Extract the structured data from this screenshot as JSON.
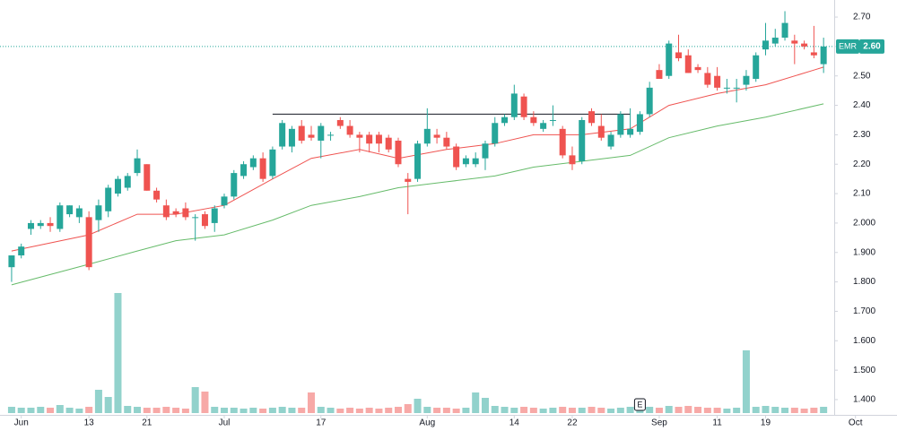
{
  "chart_data": {
    "type": "candlestick",
    "open": [
      1.85,
      1.89,
      1.98,
      1.99,
      2.0,
      1.98,
      2.03,
      2.02,
      2.02,
      2.01,
      2.04,
      2.1,
      2.12,
      2.17,
      2.2,
      2.11,
      2.06,
      2.04,
      2.05,
      2.02,
      2.03,
      2.0,
      2.06,
      2.09,
      2.16,
      2.19,
      2.22,
      2.16,
      2.26,
      2.26,
      2.33,
      2.3,
      2.28,
      2.3,
      2.35,
      2.33,
      2.3,
      2.3,
      2.3,
      2.29,
      2.28,
      2.15,
      2.15,
      2.27,
      2.3,
      2.29,
      2.26,
      2.2,
      2.2,
      2.22,
      2.27,
      2.34,
      2.36,
      2.43,
      2.36,
      2.32,
      2.35,
      2.32,
      2.23,
      2.21,
      2.38,
      2.33,
      2.26,
      2.3,
      2.3,
      2.31,
      2.37,
      2.52,
      2.5,
      2.58,
      2.57,
      2.53,
      2.51,
      2.5,
      2.46,
      2.46,
      2.47,
      2.49,
      2.59,
      2.61,
      2.63,
      2.62,
      2.61,
      2.58,
      2.54
    ],
    "high": [
      1.89,
      1.93,
      2.01,
      2.01,
      2.02,
      2.07,
      2.06,
      2.06,
      2.04,
      2.08,
      2.13,
      2.16,
      2.17,
      2.25,
      2.2,
      2.12,
      2.08,
      2.05,
      2.07,
      2.03,
      2.04,
      2.06,
      2.1,
      2.18,
      2.21,
      2.23,
      2.24,
      2.26,
      2.35,
      2.33,
      2.35,
      2.33,
      2.34,
      2.31,
      2.36,
      2.35,
      2.31,
      2.31,
      2.31,
      2.3,
      2.29,
      2.17,
      2.28,
      2.39,
      2.32,
      2.31,
      2.27,
      2.23,
      2.24,
      2.28,
      2.36,
      2.37,
      2.47,
      2.44,
      2.38,
      2.35,
      2.4,
      2.33,
      2.26,
      2.36,
      2.39,
      2.37,
      2.31,
      2.38,
      2.39,
      2.38,
      2.48,
      2.54,
      2.62,
      2.64,
      2.59,
      2.54,
      2.53,
      2.53,
      2.49,
      2.49,
      2.52,
      2.58,
      2.68,
      2.66,
      2.72,
      2.64,
      2.62,
      2.67,
      2.63
    ],
    "low": [
      1.8,
      1.88,
      1.96,
      1.98,
      1.97,
      1.97,
      2.02,
      2.0,
      1.84,
      1.97,
      2.02,
      2.09,
      2.11,
      2.16,
      2.11,
      2.07,
      2.01,
      2.02,
      2.01,
      1.94,
      1.98,
      1.97,
      2.05,
      2.08,
      2.15,
      2.18,
      2.14,
      2.15,
      2.25,
      2.24,
      2.27,
      2.28,
      2.22,
      2.28,
      2.32,
      2.29,
      2.24,
      2.24,
      2.24,
      2.24,
      2.19,
      2.03,
      2.14,
      2.26,
      2.27,
      2.25,
      2.18,
      2.19,
      2.19,
      2.18,
      2.26,
      2.33,
      2.35,
      2.35,
      2.33,
      2.31,
      2.33,
      2.22,
      2.18,
      2.2,
      2.33,
      2.28,
      2.25,
      2.29,
      2.29,
      2.3,
      2.36,
      2.49,
      2.49,
      2.55,
      2.51,
      2.51,
      2.46,
      2.45,
      2.44,
      2.41,
      2.45,
      2.48,
      2.57,
      2.6,
      2.62,
      2.54,
      2.59,
      2.56,
      2.51
    ],
    "close": [
      1.89,
      1.92,
      2.0,
      2.0,
      1.99,
      2.06,
      2.06,
      2.05,
      1.85,
      2.06,
      2.12,
      2.15,
      2.16,
      2.22,
      2.11,
      2.08,
      2.02,
      2.03,
      2.02,
      2.02,
      1.99,
      2.05,
      2.09,
      2.17,
      2.2,
      2.22,
      2.15,
      2.25,
      2.34,
      2.32,
      2.28,
      2.29,
      2.33,
      2.3,
      2.33,
      2.3,
      2.29,
      2.27,
      2.27,
      2.25,
      2.2,
      2.14,
      2.27,
      2.32,
      2.29,
      2.26,
      2.19,
      2.22,
      2.22,
      2.27,
      2.34,
      2.36,
      2.44,
      2.36,
      2.34,
      2.34,
      2.35,
      2.23,
      2.2,
      2.35,
      2.34,
      2.29,
      2.3,
      2.37,
      2.32,
      2.37,
      2.46,
      2.49,
      2.61,
      2.56,
      2.51,
      2.52,
      2.47,
      2.46,
      2.46,
      2.46,
      2.5,
      2.57,
      2.62,
      2.63,
      2.68,
      2.61,
      2.6,
      2.57,
      2.6
    ],
    "volume": [
      7,
      6,
      6,
      7,
      6,
      9,
      6,
      5,
      7,
      26,
      18,
      134,
      8,
      7,
      6,
      6,
      7,
      6,
      5,
      29,
      24,
      7,
      6,
      6,
      5,
      6,
      5,
      6,
      7,
      6,
      6,
      23,
      7,
      6,
      5,
      6,
      5,
      6,
      5,
      6,
      7,
      10,
      16,
      7,
      6,
      6,
      5,
      6,
      23,
      17,
      8,
      7,
      6,
      7,
      6,
      5,
      6,
      7,
      6,
      6,
      7,
      6,
      5,
      6,
      7,
      6,
      7,
      6,
      8,
      7,
      8,
      7,
      6,
      6,
      5,
      6,
      70,
      7,
      8,
      7,
      6,
      6,
      5,
      6,
      7
    ],
    "up_color": "#26a69a",
    "down_color": "#ef5350",
    "ma": [
      {
        "color": "#ef5350",
        "x": [
          0,
          8,
          13,
          17,
          22,
          27,
          31,
          36,
          40,
          45,
          50,
          54,
          59,
          64,
          68,
          73,
          78,
          83,
          84
        ],
        "values": [
          1.905,
          1.96,
          2.03,
          2.03,
          2.06,
          2.15,
          2.22,
          2.25,
          2.22,
          2.25,
          2.27,
          2.3,
          2.3,
          2.32,
          2.4,
          2.44,
          2.47,
          2.52,
          2.53
        ]
      },
      {
        "color": "#66bb6a",
        "x": [
          0,
          8,
          13,
          17,
          22,
          27,
          31,
          36,
          40,
          45,
          50,
          54,
          59,
          64,
          68,
          73,
          78,
          84
        ],
        "values": [
          1.79,
          1.86,
          1.905,
          1.94,
          1.96,
          2.01,
          2.06,
          2.09,
          2.12,
          2.14,
          2.16,
          2.19,
          2.21,
          2.23,
          2.29,
          2.33,
          2.36,
          2.405
        ]
      }
    ],
    "level": {
      "value": 2.37,
      "from": 27,
      "to": 64
    },
    "last_price": {
      "symbol": "EMR",
      "value": 2.6,
      "label": "2.60"
    },
    "earnings": {
      "x": 65,
      "label": "E"
    },
    "xlim": [
      -1.2,
      85.1
    ],
    "xticks": [
      {
        "value": 1,
        "label": "Jun"
      },
      {
        "value": 8,
        "label": "13"
      },
      {
        "value": 14,
        "label": "21"
      },
      {
        "value": 22,
        "label": "Jul"
      },
      {
        "value": 32,
        "label": "17"
      },
      {
        "value": 43,
        "label": "Aug"
      },
      {
        "value": 52,
        "label": "14"
      },
      {
        "value": 58,
        "label": "22"
      },
      {
        "value": 67,
        "label": "Sep"
      },
      {
        "value": 73,
        "label": "11"
      },
      {
        "value": 78,
        "label": "19"
      },
      {
        "value": 87.3,
        "label": "Oct"
      }
    ],
    "ylim": [
      1.342,
      2.758
    ],
    "yticks": [
      {
        "value": 2.7,
        "label": "2.70"
      },
      {
        "value": 2.6,
        "label": "2.60"
      },
      {
        "value": 2.5,
        "label": "2.50"
      },
      {
        "value": 2.4,
        "label": "2.40"
      },
      {
        "value": 2.3,
        "label": "2.30"
      },
      {
        "value": 2.2,
        "label": "2.20"
      },
      {
        "value": 2.1,
        "label": "2.10"
      },
      {
        "value": 2.0,
        "label": "2.000"
      },
      {
        "value": 1.9,
        "label": "1.900"
      },
      {
        "value": 1.8,
        "label": "1.800"
      },
      {
        "value": 1.7,
        "label": "1.700"
      },
      {
        "value": 1.6,
        "label": "1.600"
      },
      {
        "value": 1.5,
        "label": "1.500"
      },
      {
        "value": 1.4,
        "label": "1.400"
      }
    ]
  }
}
